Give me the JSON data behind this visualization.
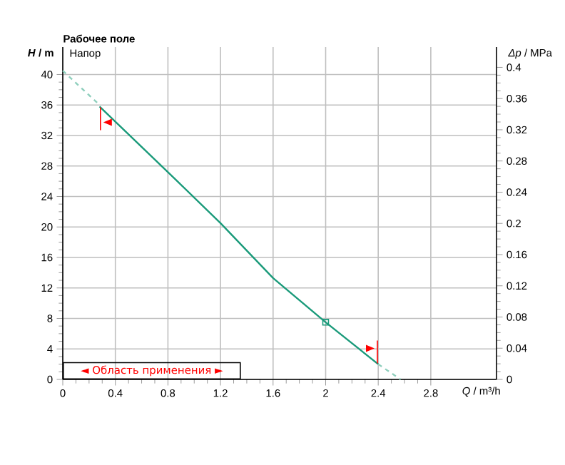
{
  "chart_data": {
    "type": "line",
    "title": "Рабочее поле",
    "xlabel": "*Q* / m³/h",
    "ylabel": "*H* / m",
    "y2label": "*Δp* / MPa",
    "annotations": [
      "Напор",
      "◄ Область применения ►"
    ],
    "series": [
      {
        "color": "#1a9a7a",
        "x": [
          0.28,
          0.8,
          1.2,
          1.6,
          2.0,
          2.4
        ],
        "values": [
          35.8,
          27.2,
          20.5,
          13.3,
          7.5,
          2.0
        ]
      },
      {
        "color": "#8fcfbd",
        "line_style": "dashed",
        "x": [
          0,
          0.28
        ],
        "values": [
          40.5,
          36
        ]
      },
      {
        "color": "#8fcfbd",
        "line_style": "dashed",
        "x": [
          2.4,
          2.57
        ],
        "values": [
          2.0,
          0
        ]
      },
      {
        "type": "scatter",
        "marker": "square",
        "color": "#1a9a7a",
        "x": [
          2
        ],
        "values": [
          7.5
        ]
      }
    ],
    "xlim": [
      0,
      3.3
    ],
    "xticks": [
      0,
      0.4,
      0.8,
      1.2,
      1.6,
      2,
      2.4,
      2.8
    ],
    "ylim": [
      0,
      43.6
    ],
    "yticks": [
      0,
      4,
      8,
      12,
      16,
      20,
      24,
      28,
      32,
      36,
      40
    ],
    "y2lim": [
      0,
      0.426
    ],
    "y2ticks": [
      0,
      0.04,
      0.08,
      0.12,
      0.16,
      0.2,
      0.24,
      0.28,
      0.32,
      0.36,
      0.4
    ],
    "grid": true,
    "line_style": "solid",
    "marker": "none"
  }
}
